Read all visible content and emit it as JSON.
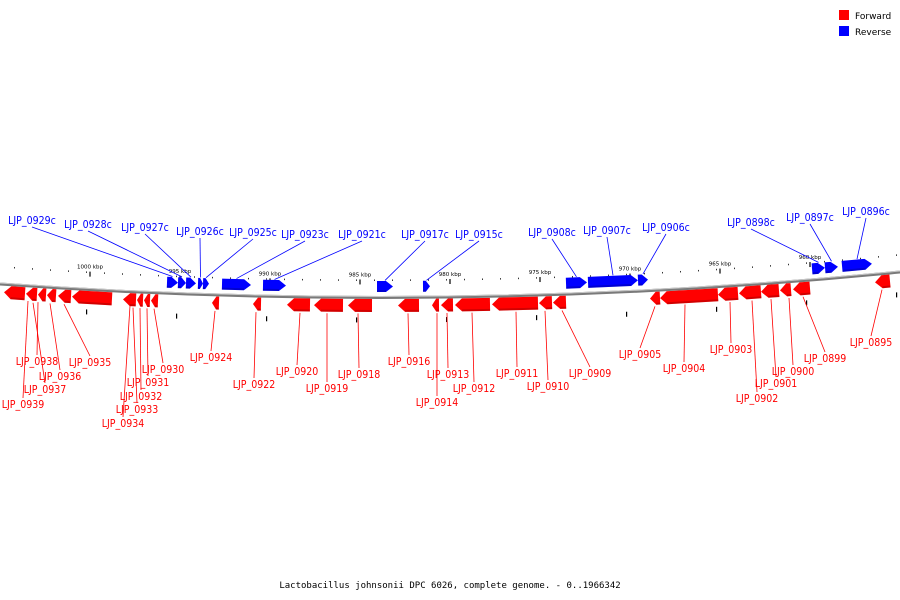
{
  "caption": "Lactobacillus johnsonii DPC 6026, complete genome. - 0..1966342",
  "legend": [
    {
      "label": "Forward",
      "color": "#ff0000"
    },
    {
      "label": "Reverse",
      "color": "#0000ff"
    }
  ],
  "colors": {
    "forward": "#ff0000",
    "reverse": "#0000ff",
    "backbone": "#808080"
  },
  "scale": {
    "unit": "kbp",
    "ticks": [
      {
        "label": "1000 kbp"
      },
      {
        "label": "995 kbp"
      },
      {
        "label": "990 kbp"
      },
      {
        "label": "985 kbp"
      },
      {
        "label": "980 kbp"
      },
      {
        "label": "975 kbp"
      },
      {
        "label": "970 kbp"
      },
      {
        "label": "965 kbp"
      },
      {
        "label": "960 kbp"
      }
    ]
  },
  "reverse_genes": [
    {
      "label": "LJP_0929c"
    },
    {
      "label": "LJP_0928c"
    },
    {
      "label": "LJP_0927c"
    },
    {
      "label": "LJP_0926c"
    },
    {
      "label": "LJP_0925c"
    },
    {
      "label": "LJP_0923c"
    },
    {
      "label": "LJP_0921c"
    },
    {
      "label": "LJP_0917c"
    },
    {
      "label": "LJP_0915c"
    },
    {
      "label": "LJP_0908c"
    },
    {
      "label": "LJP_0907c"
    },
    {
      "label": "LJP_0906c"
    },
    {
      "label": "LJP_0898c"
    },
    {
      "label": "LJP_0897c"
    },
    {
      "label": "LJP_0896c"
    }
  ],
  "forward_genes": [
    {
      "label": "LJP_0939"
    },
    {
      "label": "LJP_0938"
    },
    {
      "label": "LJP_0937"
    },
    {
      "label": "LJP_0936"
    },
    {
      "label": "LJP_0935"
    },
    {
      "label": "LJP_0934"
    },
    {
      "label": "LJP_0933"
    },
    {
      "label": "LJP_0932"
    },
    {
      "label": "LJP_0931"
    },
    {
      "label": "LJP_0930"
    },
    {
      "label": "LJP_0924"
    },
    {
      "label": "LJP_0922"
    },
    {
      "label": "LJP_0920"
    },
    {
      "label": "LJP_0919"
    },
    {
      "label": "LJP_0918"
    },
    {
      "label": "LJP_0916"
    },
    {
      "label": "LJP_0914"
    },
    {
      "label": "LJP_0913"
    },
    {
      "label": "LJP_0912"
    },
    {
      "label": "LJP_0911"
    },
    {
      "label": "LJP_0910"
    },
    {
      "label": "LJP_0909"
    },
    {
      "label": "LJP_0905"
    },
    {
      "label": "LJP_0904"
    },
    {
      "label": "LJP_0903"
    },
    {
      "label": "LJP_0902"
    },
    {
      "label": "LJP_0901"
    },
    {
      "label": "LJP_0900"
    },
    {
      "label": "LJP_0899"
    },
    {
      "label": "LJP_0895"
    }
  ]
}
